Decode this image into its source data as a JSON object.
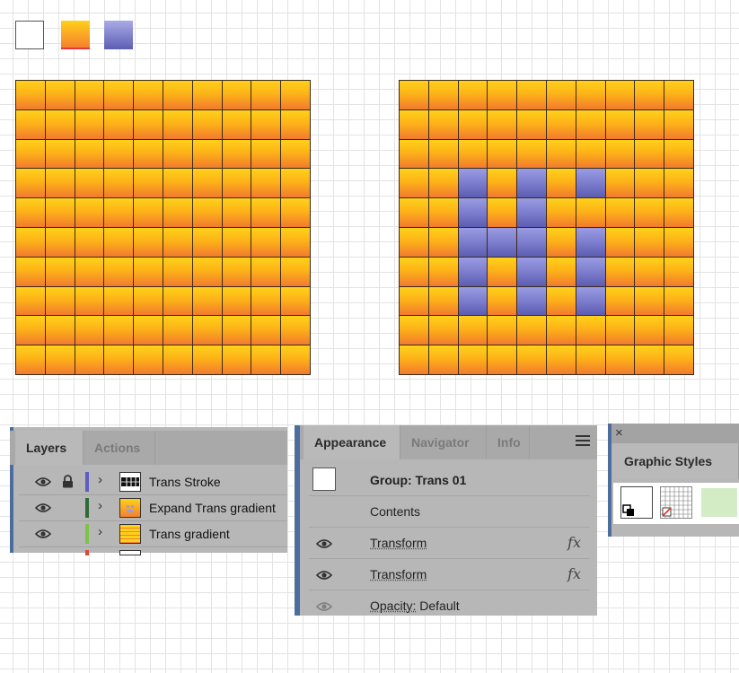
{
  "swatches": [
    {
      "name": "white",
      "color": "#ffffff"
    },
    {
      "name": "orange-gradient",
      "colors": [
        "#ffd11a",
        "#f5802e"
      ]
    },
    {
      "name": "purple-gradient",
      "colors": [
        "#a9abe6",
        "#5d5eb4"
      ]
    }
  ],
  "canvas": {
    "rows": 10,
    "cols": 10,
    "colors": {
      "orange_top": "#ffd11a",
      "orange_bottom": "#f27a2e",
      "purple_top": "#9a9ce3",
      "purple_bottom": "#5c5db2",
      "stroke": "#3b2a1a"
    },
    "right_grid_purple_cells": [
      [
        3,
        2
      ],
      [
        3,
        4
      ],
      [
        3,
        6
      ],
      [
        4,
        2
      ],
      [
        4,
        4
      ],
      [
        5,
        2
      ],
      [
        5,
        3
      ],
      [
        5,
        4
      ],
      [
        5,
        6
      ],
      [
        6,
        2
      ],
      [
        6,
        4
      ],
      [
        6,
        6
      ],
      [
        7,
        2
      ],
      [
        7,
        4
      ],
      [
        7,
        6
      ]
    ]
  },
  "layers_panel": {
    "tabs": [
      "Layers",
      "Actions"
    ],
    "active_tab": "Layers",
    "rows": [
      {
        "label": "Trans Stroke",
        "color": "#5a5fc0",
        "locked": true,
        "thumb": "stroke"
      },
      {
        "label": "Expand Trans gradient",
        "color": "#2e6b36",
        "locked": false,
        "thumb": "expand"
      },
      {
        "label": "Trans gradient",
        "color": "#7dc24a",
        "locked": false,
        "thumb": "gradient"
      }
    ]
  },
  "appearance_panel": {
    "tabs": [
      "Appearance",
      "Navigator",
      "Info"
    ],
    "active_tab": "Appearance",
    "group_label": "Group: Trans 01",
    "contents_label": "Contents",
    "rows": [
      {
        "label": "Transform",
        "fx": "fx",
        "dimmed": false
      },
      {
        "label": "Transform",
        "fx": "fx",
        "dimmed": false
      },
      {
        "label": "Opacity:",
        "value": "Default",
        "dimmed": true
      }
    ]
  },
  "graphic_styles_panel": {
    "title": "Graphic Styles",
    "close_icon": "×"
  }
}
